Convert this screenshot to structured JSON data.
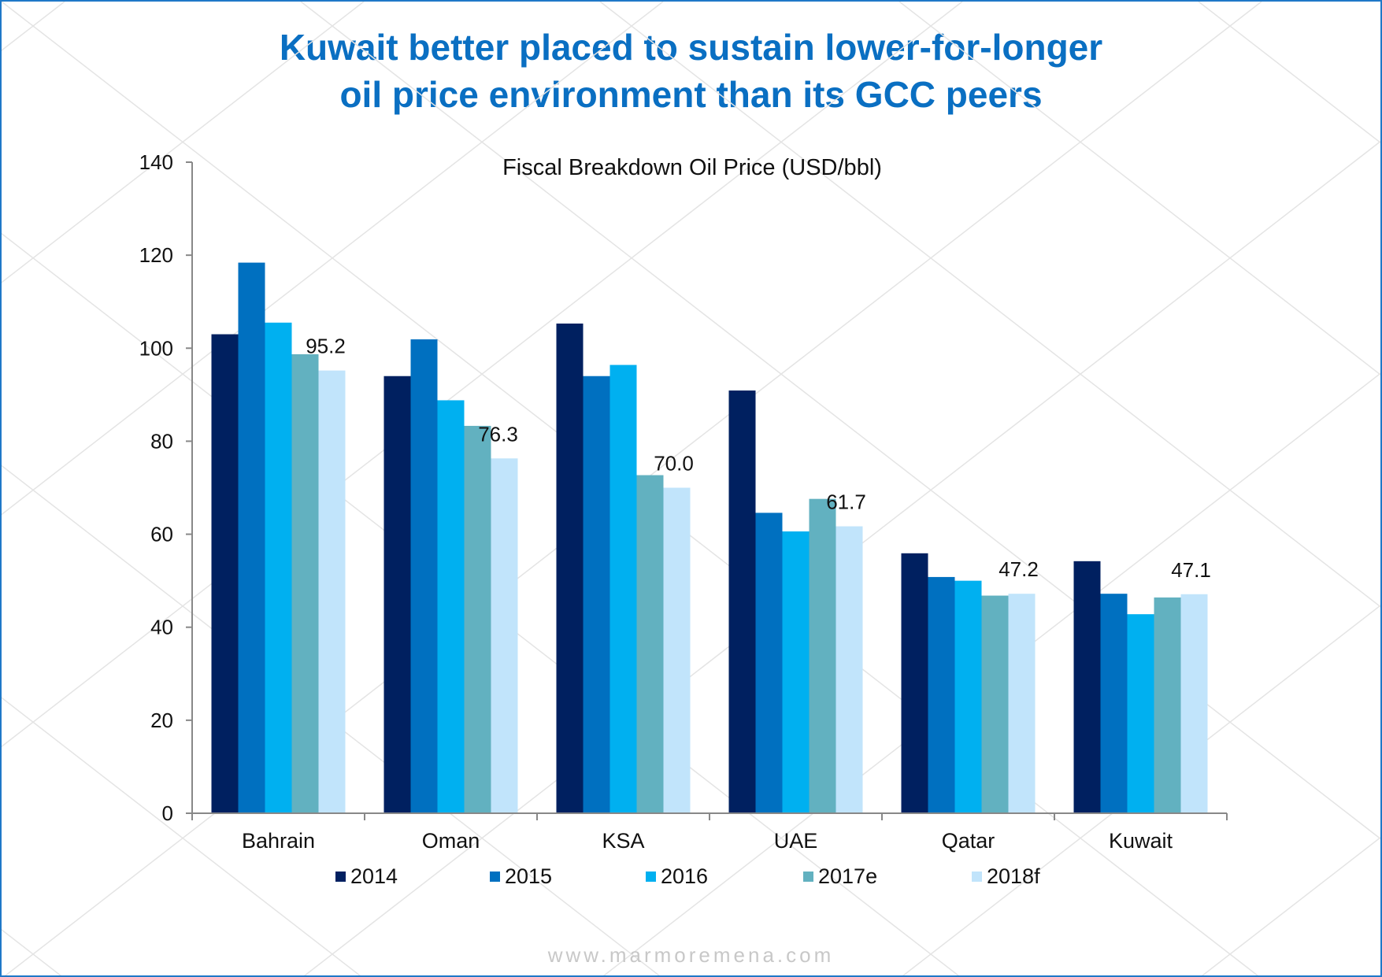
{
  "title_line1": "Kuwait better placed to sustain lower-for-longer",
  "title_line2": "oil price environment than its GCC peers",
  "footer": "www.marmoremena.com",
  "chart_data": {
    "type": "bar",
    "title": "Fiscal Breakdown Oil Price (USD/bbl)",
    "xlabel": "",
    "ylabel": "",
    "ylim": [
      0,
      140
    ],
    "yticks": [
      0,
      20,
      40,
      60,
      80,
      100,
      120,
      140
    ],
    "grid": false,
    "legend_position": "bottom",
    "categories": [
      "Bahrain",
      "Oman",
      "KSA",
      "UAE",
      "Qatar",
      "Kuwait"
    ],
    "series": [
      {
        "name": "2014",
        "color": "#002060",
        "values": [
          103.0,
          94.0,
          105.3,
          90.9,
          55.9,
          54.2
        ]
      },
      {
        "name": "2015",
        "color": "#0070c0",
        "values": [
          118.4,
          101.9,
          94.0,
          64.6,
          50.8,
          47.2
        ]
      },
      {
        "name": "2016",
        "color": "#00b0f0",
        "values": [
          105.5,
          88.8,
          96.4,
          60.6,
          50.0,
          42.8
        ]
      },
      {
        "name": "2017e",
        "color": "#62b1c0",
        "values": [
          98.7,
          83.3,
          72.7,
          67.6,
          46.8,
          46.4
        ]
      },
      {
        "name": "2018f",
        "color": "#c1e4fb",
        "values": [
          95.2,
          76.3,
          70.0,
          61.7,
          47.2,
          47.1
        ]
      }
    ],
    "data_labels": [
      "95.2",
      "76.3",
      "70.0",
      "61.7",
      "47.2",
      "47.1"
    ]
  }
}
